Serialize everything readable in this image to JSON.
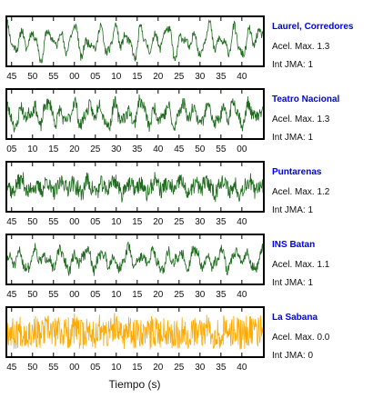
{
  "chart_data": {
    "type": "line",
    "xlabel": "Tiempo (s)",
    "colors": {
      "trace": "#1f6b1f",
      "trace_zero": "#ffaa00",
      "station_name": "#0000ee",
      "text": "#111111"
    },
    "panels": [
      {
        "station": "Laurel, Corredores",
        "accel_label": "Acel. Max. 1.3",
        "jma_label": "Int JMA: 1",
        "color": "#1f6b1f",
        "amplitude": 0.8,
        "noise": 0.2,
        "seed": 11,
        "ticks": [
          "45",
          "50",
          "55",
          "00",
          "05",
          "10",
          "15",
          "20",
          "25",
          "30",
          "35",
          "40"
        ]
      },
      {
        "station": "Teatro Nacional",
        "accel_label": "Acel. Max. 1.3",
        "jma_label": "Int JMA: 1",
        "color": "#1f6b1f",
        "amplitude": 0.65,
        "noise": 0.3,
        "seed": 23,
        "ticks": [
          "05",
          "10",
          "15",
          "20",
          "25",
          "30",
          "35",
          "40",
          "45",
          "50",
          "55",
          "00"
        ]
      },
      {
        "station": "Puntarenas",
        "accel_label": "Acel. Max. 1.2",
        "jma_label": "Int JMA: 1",
        "color": "#1f6b1f",
        "amplitude": 0.35,
        "noise": 0.4,
        "seed": 37,
        "ticks": [
          "45",
          "50",
          "55",
          "00",
          "05",
          "10",
          "15",
          "20",
          "25",
          "30",
          "35",
          "40"
        ]
      },
      {
        "station": "INS Batan",
        "accel_label": "Acel. Max. 1.1",
        "jma_label": "Int JMA: 1",
        "color": "#1f6b1f",
        "amplitude": 0.55,
        "noise": 0.25,
        "seed": 51,
        "ticks": [
          "45",
          "50",
          "55",
          "00",
          "05",
          "10",
          "15",
          "20",
          "25",
          "30",
          "35",
          "40"
        ]
      },
      {
        "station": "La Sabana",
        "accel_label": "Acel. Max. 0.0",
        "jma_label": "Int JMA: 0",
        "color": "#ffaa00",
        "amplitude": 0.15,
        "noise": 0.75,
        "seed": 67,
        "ticks": [
          "45",
          "50",
          "55",
          "00",
          "05",
          "10",
          "15",
          "20",
          "25",
          "30",
          "35",
          "40"
        ]
      }
    ]
  }
}
